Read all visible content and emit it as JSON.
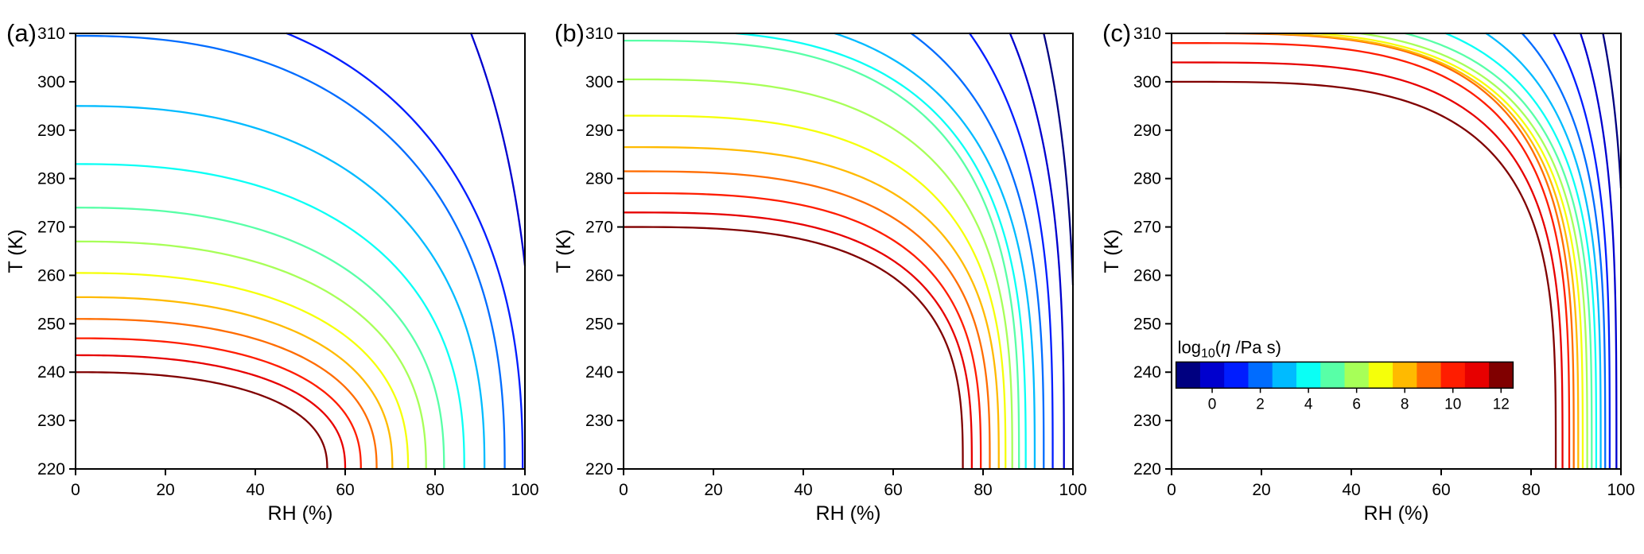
{
  "figure": {
    "background": "#ffffff",
    "panel_tags": [
      "(a)",
      "(b)",
      "(c)"
    ]
  },
  "chart_data": {
    "type": "line",
    "subtype": "contour",
    "description": "Three-panel figure of iso-viscosity contour lines (log10 of viscosity in Pa s) in temperature T (K) versus relative humidity RH (%) space. Contours run from dark blue (low log10 viscosity, about -1) at warm/humid conditions to dark red (log10 viscosity = 12) at cold/dry conditions.",
    "xlabel": "RH (%)",
    "ylabel": "T (K)",
    "xlim": [
      0,
      100
    ],
    "ylim": [
      220,
      310
    ],
    "xticks": [
      0,
      20,
      40,
      60,
      80,
      100
    ],
    "yticks": [
      220,
      230,
      240,
      250,
      260,
      270,
      280,
      290,
      300,
      310
    ],
    "grid": false,
    "legend": "colorbar in panel (c)",
    "panels": [
      {
        "tag": "(a)",
        "curve_exponent": 2.4,
        "contours": [
          {
            "level": 12,
            "color": "#800000",
            "start": {
              "edge": "left",
              "T": 240
            },
            "end": {
              "edge": "bottom",
              "RH": 56
            }
          },
          {
            "level": 11,
            "color": "#e70000",
            "start": {
              "edge": "left",
              "T": 243.5
            },
            "end": {
              "edge": "bottom",
              "RH": 60
            }
          },
          {
            "level": 10,
            "color": "#ff1d00",
            "start": {
              "edge": "left",
              "T": 247
            },
            "end": {
              "edge": "bottom",
              "RH": 63.5
            }
          },
          {
            "level": 9,
            "color": "#ff6c00",
            "start": {
              "edge": "left",
              "T": 251
            },
            "end": {
              "edge": "bottom",
              "RH": 67
            }
          },
          {
            "level": 8,
            "color": "#ffba00",
            "start": {
              "edge": "left",
              "T": 255.5
            },
            "end": {
              "edge": "bottom",
              "RH": 70.5
            }
          },
          {
            "level": 7,
            "color": "#f5ff0a",
            "start": {
              "edge": "left",
              "T": 260.5
            },
            "end": {
              "edge": "bottom",
              "RH": 74
            }
          },
          {
            "level": 6,
            "color": "#a7ff58",
            "start": {
              "edge": "left",
              "T": 267
            },
            "end": {
              "edge": "bottom",
              "RH": 78
            }
          },
          {
            "level": 5,
            "color": "#58ffa7",
            "start": {
              "edge": "left",
              "T": 274
            },
            "end": {
              "edge": "bottom",
              "RH": 82
            }
          },
          {
            "level": 4,
            "color": "#0afff5",
            "start": {
              "edge": "left",
              "T": 283
            },
            "end": {
              "edge": "bottom",
              "RH": 86.5
            }
          },
          {
            "level": 3,
            "color": "#00bbff",
            "start": {
              "edge": "left",
              "T": 295
            },
            "end": {
              "edge": "bottom",
              "RH": 91
            }
          },
          {
            "level": 2,
            "color": "#006cff",
            "start": {
              "edge": "left",
              "T": 309.5
            },
            "end": {
              "edge": "bottom",
              "RH": 95.5
            }
          },
          {
            "level": 1,
            "color": "#001dff",
            "start": {
              "edge": "top",
              "RH": 47
            },
            "end": {
              "edge": "bottom",
              "RH": 99.5
            }
          },
          {
            "level": 0,
            "color": "#0000ce",
            "start": {
              "edge": "top",
              "RH": 88
            },
            "end": {
              "edge": "right",
              "T": 262
            }
          }
        ]
      },
      {
        "tag": "(b)",
        "curve_exponent": 3.0,
        "contours": [
          {
            "level": 12,
            "color": "#800000",
            "start": {
              "edge": "left",
              "T": 270
            },
            "end": {
              "edge": "bottom",
              "RH": 75.5
            }
          },
          {
            "level": 11,
            "color": "#e70000",
            "start": {
              "edge": "left",
              "T": 273
            },
            "end": {
              "edge": "bottom",
              "RH": 77.5
            }
          },
          {
            "level": 10,
            "color": "#ff1d00",
            "start": {
              "edge": "left",
              "T": 277
            },
            "end": {
              "edge": "bottom",
              "RH": 79.5
            }
          },
          {
            "level": 9,
            "color": "#ff6c00",
            "start": {
              "edge": "left",
              "T": 281.5
            },
            "end": {
              "edge": "bottom",
              "RH": 81.5
            }
          },
          {
            "level": 8,
            "color": "#ffba00",
            "start": {
              "edge": "left",
              "T": 286.5
            },
            "end": {
              "edge": "bottom",
              "RH": 83.5
            }
          },
          {
            "level": 7,
            "color": "#f5ff0a",
            "start": {
              "edge": "left",
              "T": 293
            },
            "end": {
              "edge": "bottom",
              "RH": 85
            }
          },
          {
            "level": 6,
            "color": "#a7ff58",
            "start": {
              "edge": "left",
              "T": 300.5
            },
            "end": {
              "edge": "bottom",
              "RH": 86.5
            }
          },
          {
            "level": 5,
            "color": "#58ffa7",
            "start": {
              "edge": "left",
              "T": 308.5
            },
            "end": {
              "edge": "bottom",
              "RH": 88
            }
          },
          {
            "level": 4,
            "color": "#0afff5",
            "start": {
              "edge": "top",
              "RH": 25
            },
            "end": {
              "edge": "bottom",
              "RH": 89.5
            }
          },
          {
            "level": 3,
            "color": "#00bbff",
            "start": {
              "edge": "top",
              "RH": 47
            },
            "end": {
              "edge": "bottom",
              "RH": 91.5
            }
          },
          {
            "level": 2,
            "color": "#006cff",
            "start": {
              "edge": "top",
              "RH": 64
            },
            "end": {
              "edge": "bottom",
              "RH": 93.5
            }
          },
          {
            "level": 1,
            "color": "#001dff",
            "start": {
              "edge": "top",
              "RH": 77
            },
            "end": {
              "edge": "bottom",
              "RH": 95.5
            }
          },
          {
            "level": 0,
            "color": "#0000ce",
            "start": {
              "edge": "top",
              "RH": 86
            },
            "end": {
              "edge": "bottom",
              "RH": 98
            }
          },
          {
            "level": -1,
            "color": "#000080",
            "start": {
              "edge": "top",
              "RH": 93.5
            },
            "end": {
              "edge": "right",
              "T": 258
            }
          }
        ]
      },
      {
        "tag": "(c)",
        "has_colorbar": true,
        "curve_exponent": 3.6,
        "contours": [
          {
            "level": 12,
            "color": "#800000",
            "start": {
              "edge": "left",
              "T": 300
            },
            "end": {
              "edge": "bottom",
              "RH": 85.5
            }
          },
          {
            "level": 11,
            "color": "#e70000",
            "start": {
              "edge": "left",
              "T": 304
            },
            "end": {
              "edge": "bottom",
              "RH": 87
            }
          },
          {
            "level": 10,
            "color": "#ff1d00",
            "start": {
              "edge": "left",
              "T": 308
            },
            "end": {
              "edge": "bottom",
              "RH": 88.5
            }
          },
          {
            "level": 9,
            "color": "#ff6c00",
            "start": {
              "edge": "top",
              "RH": 12
            },
            "end": {
              "edge": "bottom",
              "RH": 89.5
            }
          },
          {
            "level": 8,
            "color": "#ffba00",
            "start": {
              "edge": "top",
              "RH": 22
            },
            "end": {
              "edge": "bottom",
              "RH": 90.5
            }
          },
          {
            "level": 7,
            "color": "#f5ff0a",
            "start": {
              "edge": "top",
              "RH": 32
            },
            "end": {
              "edge": "bottom",
              "RH": 91.5
            }
          },
          {
            "level": 6,
            "color": "#a7ff58",
            "start": {
              "edge": "top",
              "RH": 42
            },
            "end": {
              "edge": "bottom",
              "RH": 92.5
            }
          },
          {
            "level": 5,
            "color": "#58ffa7",
            "start": {
              "edge": "top",
              "RH": 52
            },
            "end": {
              "edge": "bottom",
              "RH": 93.5
            }
          },
          {
            "level": 4,
            "color": "#0afff5",
            "start": {
              "edge": "top",
              "RH": 61
            },
            "end": {
              "edge": "bottom",
              "RH": 94.5
            }
          },
          {
            "level": 3,
            "color": "#00bbff",
            "start": {
              "edge": "top",
              "RH": 70
            },
            "end": {
              "edge": "bottom",
              "RH": 95.5
            }
          },
          {
            "level": 2,
            "color": "#006cff",
            "start": {
              "edge": "top",
              "RH": 78
            },
            "end": {
              "edge": "bottom",
              "RH": 96.5
            }
          },
          {
            "level": 1,
            "color": "#001dff",
            "start": {
              "edge": "top",
              "RH": 85
            },
            "end": {
              "edge": "bottom",
              "RH": 97.5
            }
          },
          {
            "level": 0,
            "color": "#0000ce",
            "start": {
              "edge": "top",
              "RH": 91
            },
            "end": {
              "edge": "bottom",
              "RH": 99
            }
          },
          {
            "level": -1,
            "color": "#000080",
            "start": {
              "edge": "top",
              "RH": 96
            },
            "end": {
              "edge": "right",
              "T": 278
            }
          }
        ]
      }
    ],
    "colorbar": {
      "panel_tag": "(c)",
      "title": "log10(η /Pa s)",
      "title_parts": {
        "prefix": "log",
        "sub": "10",
        "mid": "(",
        "eta": "η",
        "suffix": " /Pa s)"
      },
      "ticks": [
        0,
        2,
        4,
        6,
        8,
        10,
        12
      ],
      "levels_range": [
        -1.5,
        12.5
      ],
      "orientation": "horizontal",
      "span_rh": [
        1,
        76
      ],
      "span_T": [
        236.7,
        242.1
      ],
      "colors": [
        "#000080",
        "#0000ce",
        "#001dff",
        "#006cff",
        "#00bbff",
        "#0afff5",
        "#58ffa7",
        "#a7ff58",
        "#f5ff0a",
        "#ffba00",
        "#ff6c00",
        "#ff1d00",
        "#e70000",
        "#800000"
      ]
    }
  }
}
